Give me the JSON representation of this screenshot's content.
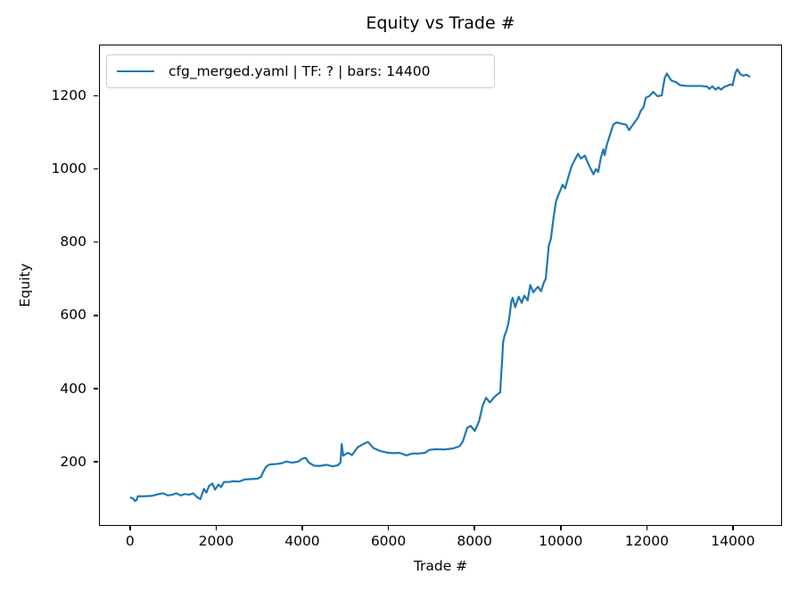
{
  "chart": {
    "title": "Equity vs Trade #",
    "xlabel": "Trade #",
    "ylabel": "Equity",
    "legend": {
      "label": "cfg_merged.yaml | TF: ? | bars: 14400",
      "line_color": "#1f77b4"
    }
  },
  "chart_data": {
    "type": "line",
    "title": "Equity vs Trade #",
    "xlabel": "Trade #",
    "ylabel": "Equity",
    "grid": false,
    "legend_position": "upper left",
    "line_color": "#1f77b4",
    "axis_color": "#000000",
    "xlim": [
      -720,
      15140
    ],
    "ylim": [
      25,
      1340
    ],
    "x_ticks": [
      0,
      2000,
      4000,
      6000,
      8000,
      10000,
      12000,
      14000
    ],
    "y_ticks": [
      200,
      400,
      600,
      800,
      1000,
      1200
    ],
    "series": [
      {
        "name": "cfg_merged.yaml | TF: ? | bars: 14400",
        "points": [
          [
            0,
            100
          ],
          [
            60,
            97
          ],
          [
            90,
            91
          ],
          [
            130,
            93
          ],
          [
            165,
            104
          ],
          [
            300,
            104
          ],
          [
            500,
            105
          ],
          [
            650,
            110
          ],
          [
            760,
            112
          ],
          [
            860,
            106
          ],
          [
            960,
            108
          ],
          [
            1060,
            112
          ],
          [
            1160,
            106
          ],
          [
            1260,
            110
          ],
          [
            1360,
            108
          ],
          [
            1450,
            112
          ],
          [
            1550,
            101
          ],
          [
            1620,
            96
          ],
          [
            1660,
            110
          ],
          [
            1700,
            124
          ],
          [
            1760,
            114
          ],
          [
            1820,
            132
          ],
          [
            1900,
            139
          ],
          [
            1960,
            122
          ],
          [
            2040,
            136
          ],
          [
            2100,
            129
          ],
          [
            2170,
            143
          ],
          [
            2280,
            143
          ],
          [
            2400,
            145
          ],
          [
            2520,
            144
          ],
          [
            2650,
            150
          ],
          [
            2800,
            151
          ],
          [
            2950,
            152
          ],
          [
            3030,
            157
          ],
          [
            3090,
            172
          ],
          [
            3150,
            185
          ],
          [
            3230,
            191
          ],
          [
            3360,
            192
          ],
          [
            3500,
            194
          ],
          [
            3620,
            199
          ],
          [
            3760,
            196
          ],
          [
            3900,
            199
          ],
          [
            3990,
            207
          ],
          [
            4070,
            209
          ],
          [
            4150,
            196
          ],
          [
            4260,
            188
          ],
          [
            4400,
            187
          ],
          [
            4550,
            190
          ],
          [
            4700,
            186
          ],
          [
            4820,
            189
          ],
          [
            4880,
            196
          ],
          [
            4910,
            247
          ],
          [
            4945,
            215
          ],
          [
            5050,
            223
          ],
          [
            5150,
            217
          ],
          [
            5280,
            238
          ],
          [
            5400,
            246
          ],
          [
            5520,
            253
          ],
          [
            5650,
            236
          ],
          [
            5800,
            228
          ],
          [
            5950,
            224
          ],
          [
            6100,
            222
          ],
          [
            6250,
            223
          ],
          [
            6420,
            216
          ],
          [
            6550,
            221
          ],
          [
            6700,
            221
          ],
          [
            6850,
            223
          ],
          [
            6950,
            231
          ],
          [
            7100,
            233
          ],
          [
            7300,
            232
          ],
          [
            7500,
            235
          ],
          [
            7650,
            241
          ],
          [
            7730,
            254
          ],
          [
            7830,
            291
          ],
          [
            7910,
            297
          ],
          [
            8010,
            283
          ],
          [
            8110,
            311
          ],
          [
            8190,
            352
          ],
          [
            8270,
            374
          ],
          [
            8360,
            361
          ],
          [
            8460,
            376
          ],
          [
            8560,
            386
          ],
          [
            8600,
            388
          ],
          [
            8625,
            440
          ],
          [
            8640,
            468
          ],
          [
            8665,
            525
          ],
          [
            8700,
            545
          ],
          [
            8740,
            556
          ],
          [
            8790,
            578
          ],
          [
            8820,
            602
          ],
          [
            8860,
            640
          ],
          [
            8890,
            648
          ],
          [
            8950,
            622
          ],
          [
            9030,
            651
          ],
          [
            9100,
            634
          ],
          [
            9160,
            654
          ],
          [
            9240,
            641
          ],
          [
            9300,
            683
          ],
          [
            9370,
            663
          ],
          [
            9430,
            672
          ],
          [
            9480,
            678
          ],
          [
            9550,
            666
          ],
          [
            9615,
            690
          ],
          [
            9660,
            700
          ],
          [
            9730,
            790
          ],
          [
            9780,
            810
          ],
          [
            9840,
            866
          ],
          [
            9900,
            913
          ],
          [
            9950,
            929
          ],
          [
            10000,
            943
          ],
          [
            10050,
            958
          ],
          [
            10110,
            948
          ],
          [
            10190,
            981
          ],
          [
            10260,
            1008
          ],
          [
            10320,
            1023
          ],
          [
            10410,
            1043
          ],
          [
            10480,
            1030
          ],
          [
            10570,
            1038
          ],
          [
            10660,
            1013
          ],
          [
            10770,
            987
          ],
          [
            10830,
            1001
          ],
          [
            10880,
            993
          ],
          [
            10940,
            1031
          ],
          [
            11000,
            1055
          ],
          [
            11030,
            1039
          ],
          [
            11080,
            1067
          ],
          [
            11150,
            1093
          ],
          [
            11230,
            1123
          ],
          [
            11310,
            1129
          ],
          [
            11410,
            1126
          ],
          [
            11530,
            1123
          ],
          [
            11600,
            1108
          ],
          [
            11660,
            1118
          ],
          [
            11740,
            1131
          ],
          [
            11810,
            1143
          ],
          [
            11870,
            1161
          ],
          [
            11930,
            1169
          ],
          [
            11990,
            1197
          ],
          [
            12070,
            1201
          ],
          [
            12160,
            1213
          ],
          [
            12260,
            1201
          ],
          [
            12360,
            1203
          ],
          [
            12430,
            1251
          ],
          [
            12480,
            1263
          ],
          [
            12580,
            1244
          ],
          [
            12700,
            1239
          ],
          [
            12790,
            1231
          ],
          [
            12960,
            1229
          ],
          [
            13120,
            1229
          ],
          [
            13280,
            1229
          ],
          [
            13420,
            1227
          ],
          [
            13470,
            1221
          ],
          [
            13540,
            1228
          ],
          [
            13610,
            1219
          ],
          [
            13680,
            1225
          ],
          [
            13740,
            1219
          ],
          [
            13810,
            1226
          ],
          [
            13880,
            1229
          ],
          [
            13950,
            1233
          ],
          [
            14010,
            1231
          ],
          [
            14070,
            1263
          ],
          [
            14120,
            1275
          ],
          [
            14190,
            1261
          ],
          [
            14260,
            1257
          ],
          [
            14330,
            1260
          ],
          [
            14400,
            1255
          ]
        ]
      }
    ]
  }
}
